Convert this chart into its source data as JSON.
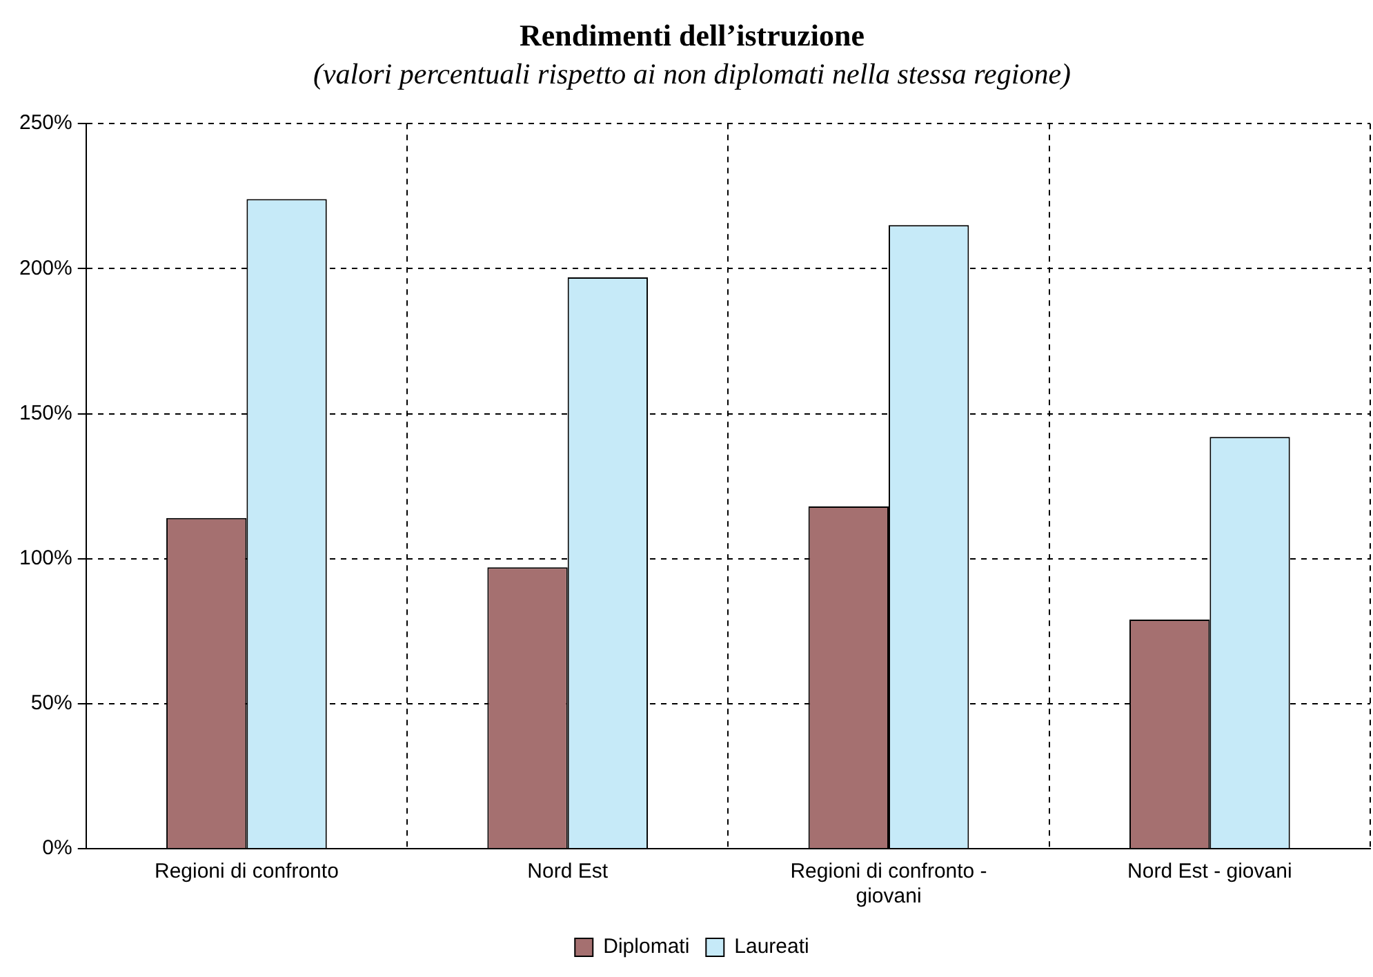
{
  "chart_data": {
    "type": "bar",
    "title": "Rendimenti dell’istruzione",
    "subtitle": "(valori percentuali rispetto ai non diplomati nella stessa regione)",
    "categories": [
      "Regioni di confronto",
      "Nord Est",
      "Regioni di confronto - giovani",
      "Nord Est - giovani"
    ],
    "series": [
      {
        "name": "Diplomati",
        "color": "#a57070",
        "values": [
          114,
          97,
          118,
          79
        ]
      },
      {
        "name": "Laureati",
        "color": "#c6eaf8",
        "values": [
          224,
          197,
          215,
          142
        ]
      }
    ],
    "ylim": [
      0,
      250
    ],
    "yticks": [
      {
        "value": 0,
        "label": "0%"
      },
      {
        "value": 50,
        "label": "50%"
      },
      {
        "value": 100,
        "label": "100%"
      },
      {
        "value": 150,
        "label": "150%"
      },
      {
        "value": 200,
        "label": "200%"
      },
      {
        "value": 250,
        "label": "250%"
      }
    ],
    "grid": true,
    "legend": "bottom"
  }
}
